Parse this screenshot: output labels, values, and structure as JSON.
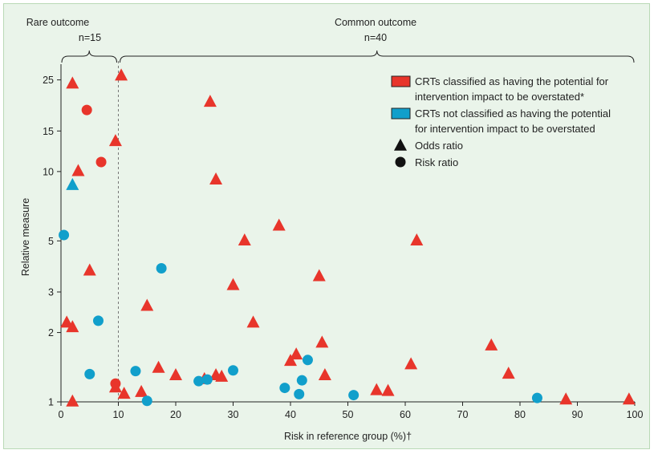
{
  "chart_data": {
    "type": "scatter",
    "xlabel": "Risk in reference group (%)†",
    "ylabel": "Relative measure",
    "xlim": [
      0,
      100
    ],
    "ylim": [
      1,
      27
    ],
    "y_scale": "log",
    "x_ticks": [
      0,
      10,
      20,
      30,
      40,
      50,
      60,
      70,
      80,
      90,
      100
    ],
    "y_ticks": [
      1,
      2,
      3,
      5,
      10,
      15,
      25
    ],
    "groups": [
      {
        "label": "Rare outcome",
        "count_label": "n=15",
        "x_range": [
          0,
          10
        ]
      },
      {
        "label": "Common outcome",
        "count_label": "n=40",
        "x_range": [
          10,
          100
        ]
      }
    ],
    "divider_x": 10,
    "legend": {
      "position": "top-right",
      "entries": [
        {
          "name": "overstated",
          "lines": [
            "CRTs classified as having the potential for",
            "intervention impact to be overstated*"
          ],
          "color": "#e8352b",
          "symbol": "square"
        },
        {
          "name": "not-overstated",
          "lines": [
            "CRTs not classified as having the potential",
            "for intervention impact to be overstated"
          ],
          "color": "#119fcb",
          "symbol": "square"
        },
        {
          "name": "odds-ratio",
          "lines": [
            "Odds ratio"
          ],
          "color": "#111111",
          "symbol": "triangle"
        },
        {
          "name": "risk-ratio",
          "lines": [
            "Risk ratio"
          ],
          "color": "#111111",
          "symbol": "circle"
        }
      ]
    },
    "colors": {
      "overstated": "#e8352b",
      "not_overstated": "#119fcb"
    },
    "series": [
      {
        "name": "overstated-odds-ratio",
        "color": "#e8352b",
        "marker": "triangle",
        "points": [
          [
            2,
            24
          ],
          [
            1,
            2.2
          ],
          [
            2,
            2.1
          ],
          [
            2,
            1.0
          ],
          [
            3,
            10
          ],
          [
            5,
            3.7
          ],
          [
            9.5,
            13.5
          ],
          [
            9.5,
            1.15
          ],
          [
            10.5,
            26
          ],
          [
            11,
            1.08
          ],
          [
            14,
            1.1
          ],
          [
            15,
            2.6
          ],
          [
            17,
            1.4
          ],
          [
            20,
            1.3
          ],
          [
            25,
            1.25
          ],
          [
            26,
            20
          ],
          [
            27,
            9.2
          ],
          [
            27,
            1.3
          ],
          [
            28,
            1.28
          ],
          [
            30,
            3.2
          ],
          [
            32,
            5
          ],
          [
            33.5,
            2.2
          ],
          [
            38,
            5.8
          ],
          [
            40,
            1.5
          ],
          [
            41,
            1.6
          ],
          [
            45,
            3.5
          ],
          [
            45.5,
            1.8
          ],
          [
            46,
            1.3
          ],
          [
            55,
            1.12
          ],
          [
            57,
            1.11
          ],
          [
            61,
            1.45
          ],
          [
            62,
            5
          ],
          [
            75,
            1.75
          ],
          [
            78,
            1.32
          ],
          [
            88,
            1.02
          ],
          [
            99,
            1.02
          ]
        ]
      },
      {
        "name": "overstated-risk-ratio",
        "color": "#e8352b",
        "marker": "circle",
        "points": [
          [
            4.5,
            18.5
          ],
          [
            7,
            11
          ],
          [
            9.5,
            1.2
          ]
        ]
      },
      {
        "name": "not-overstated-odds-ratio",
        "color": "#119fcb",
        "marker": "triangle",
        "points": [
          [
            2,
            8.7
          ]
        ]
      },
      {
        "name": "not-overstated-risk-ratio",
        "color": "#119fcb",
        "marker": "circle",
        "points": [
          [
            0.5,
            5.3
          ],
          [
            5,
            1.32
          ],
          [
            6.5,
            2.25
          ],
          [
            13,
            1.36
          ],
          [
            15,
            1.01
          ],
          [
            17.5,
            3.8
          ],
          [
            24,
            1.23
          ],
          [
            25.5,
            1.25
          ],
          [
            30,
            1.37
          ],
          [
            39,
            1.15
          ],
          [
            41.5,
            1.08
          ],
          [
            42,
            1.24
          ],
          [
            43,
            1.52
          ],
          [
            51,
            1.07
          ],
          [
            83,
            1.04
          ]
        ]
      }
    ]
  }
}
